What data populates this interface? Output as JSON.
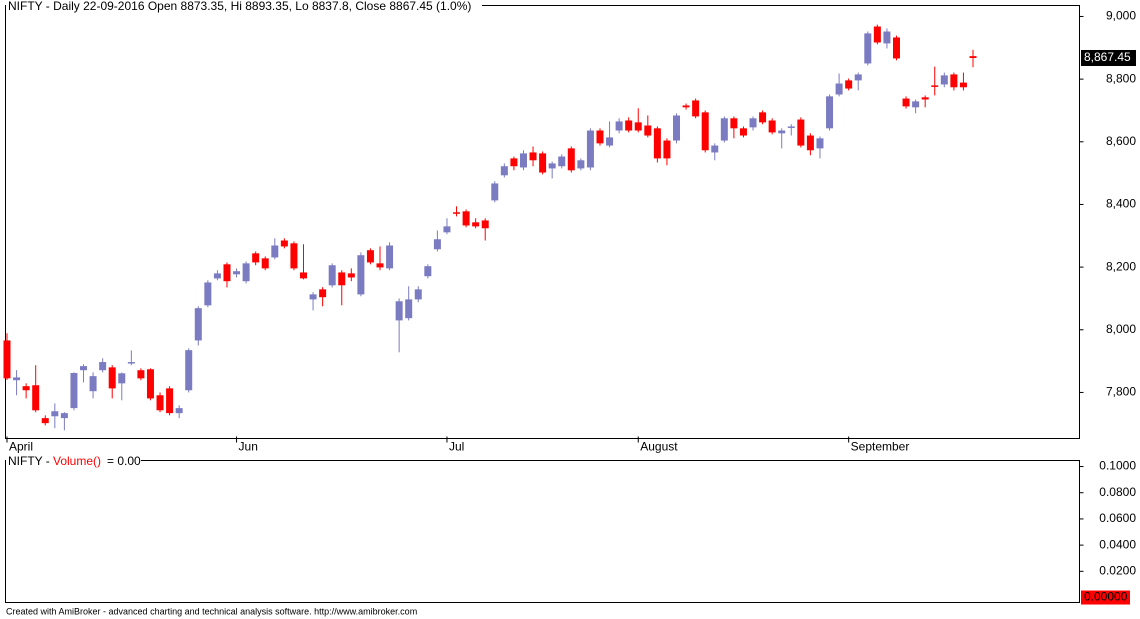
{
  "chart_data": [
    {
      "type": "candlestick",
      "title": "NIFTY - Daily 22-09-2016 Open 8873.35, Hi 8893.35, Lo 8837.8, Close 8867.45 (1.0%)",
      "categories": [
        "April",
        null,
        null,
        null,
        null,
        null,
        null,
        null,
        null,
        null,
        null,
        null,
        null,
        null,
        null,
        null,
        null,
        null,
        null,
        null,
        null,
        null,
        null,
        null,
        "Jun",
        null,
        null,
        null,
        null,
        null,
        null,
        null,
        null,
        null,
        null,
        null,
        null,
        null,
        null,
        null,
        null,
        null,
        null,
        null,
        null,
        null,
        "Jul",
        null,
        null,
        null,
        null,
        null,
        null,
        null,
        null,
        null,
        null,
        null,
        null,
        null,
        null,
        null,
        null,
        null,
        null,
        null,
        "August",
        null,
        null,
        null,
        null,
        null,
        null,
        null,
        null,
        null,
        null,
        null,
        null,
        null,
        null,
        null,
        null,
        null,
        null,
        null,
        null,
        null,
        "September",
        null,
        null,
        null,
        null,
        null,
        null,
        null,
        null,
        null,
        null,
        null,
        null,
        null
      ],
      "open": [
        7966,
        7839,
        7820,
        7823,
        7718,
        7724,
        7718,
        7750,
        7871,
        7804,
        7871,
        7880,
        7829,
        7893,
        7871,
        7874,
        7791,
        7813,
        7734,
        7807,
        7966,
        8078,
        8164,
        8209,
        8177,
        8155,
        8244,
        8228,
        8231,
        8285,
        8276,
        8183,
        8097,
        8129,
        8142,
        8183,
        8180,
        8113,
        8254,
        8212,
        8196,
        8030,
        8037,
        8097,
        8171,
        8257,
        8311,
        8375,
        8378,
        8343,
        8349,
        8413,
        8493,
        8547,
        8518,
        8566,
        8563,
        8515,
        8522,
        8579,
        8515,
        8518,
        8636,
        8588,
        8636,
        8668,
        8662,
        8652,
        8643,
        8604,
        8604,
        8716,
        8732,
        8694,
        8566,
        8604,
        8675,
        8643,
        8646,
        8694,
        8668,
        8627,
        8646,
        8671,
        8620,
        8579,
        8643,
        8751,
        8796,
        8796,
        8850,
        8968,
        8914,
        8933,
        8738,
        8710,
        8742,
        8780,
        8783,
        8815,
        8789,
        8873.35
      ],
      "high": [
        7989,
        7871,
        7829,
        7887,
        7727,
        7765,
        7737,
        7864,
        7890,
        7864,
        7909,
        7887,
        7864,
        7934,
        7877,
        7877,
        7800,
        7820,
        7759,
        7941,
        8075,
        8158,
        8190,
        8215,
        8196,
        8218,
        8250,
        8234,
        8292,
        8292,
        8282,
        8273,
        8120,
        8136,
        8212,
        8190,
        8196,
        8247,
        8260,
        8266,
        8279,
        8100,
        8139,
        8139,
        8209,
        8317,
        8356,
        8394,
        8384,
        8356,
        8356,
        8474,
        8531,
        8553,
        8573,
        8585,
        8569,
        8537,
        8560,
        8585,
        8547,
        8643,
        8643,
        8665,
        8675,
        8678,
        8707,
        8684,
        8649,
        8611,
        8691,
        8722,
        8738,
        8700,
        8595,
        8681,
        8681,
        8649,
        8681,
        8700,
        8675,
        8643,
        8656,
        8678,
        8627,
        8617,
        8751,
        8818,
        8802,
        8821,
        8952,
        8974,
        8962,
        8939,
        8745,
        8735,
        8748,
        8840,
        8821,
        8821,
        8821,
        8893.35
      ],
      "low": [
        7840,
        7791,
        7781,
        7737,
        7695,
        7686,
        7679,
        7743,
        7832,
        7781,
        7864,
        7781,
        7775,
        7887,
        7839,
        7775,
        7737,
        7727,
        7718,
        7800,
        7950,
        8072,
        8158,
        8135,
        8167,
        8148,
        8206,
        8190,
        8225,
        8260,
        8190,
        8161,
        8062,
        8075,
        8135,
        8078,
        8155,
        8107,
        8209,
        8190,
        8190,
        7928,
        8030,
        8088,
        8164,
        8250,
        8305,
        8362,
        8327,
        8324,
        8285,
        8407,
        8486,
        8509,
        8509,
        8522,
        8496,
        8483,
        8515,
        8502,
        8509,
        8509,
        8588,
        8582,
        8627,
        8630,
        8630,
        8614,
        8534,
        8525,
        8595,
        8703,
        8675,
        8566,
        8541,
        8598,
        8611,
        8614,
        8636,
        8656,
        8624,
        8579,
        8620,
        8582,
        8557,
        8547,
        8636,
        8745,
        8764,
        8764,
        8844,
        8911,
        8898,
        8860,
        8706,
        8691,
        8710,
        8748,
        8774,
        8764,
        8764,
        8837.8
      ],
      "close": [
        7845,
        7848,
        7807,
        7743,
        7702,
        7740,
        7734,
        7862,
        7884,
        7852,
        7897,
        7813,
        7861,
        7897,
        7845,
        7781,
        7743,
        7734,
        7750,
        7935,
        8069,
        8151,
        8180,
        8155,
        8187,
        8212,
        8215,
        8196,
        8269,
        8266,
        8196,
        8164,
        8113,
        8104,
        8206,
        8142,
        8167,
        8238,
        8215,
        8199,
        8269,
        8091,
        8097,
        8129,
        8203,
        8289,
        8330,
        8372,
        8333,
        8330,
        8324,
        8467,
        8522,
        8522,
        8563,
        8541,
        8502,
        8531,
        8553,
        8509,
        8541,
        8636,
        8595,
        8614,
        8665,
        8636,
        8636,
        8620,
        8547,
        8547,
        8684,
        8710,
        8681,
        8573,
        8588,
        8675,
        8643,
        8620,
        8675,
        8662,
        8630,
        8636,
        8649,
        8588,
        8573,
        8611,
        8745,
        8786,
        8770,
        8815,
        8946,
        8917,
        8952,
        8866,
        8713,
        8729,
        8735,
        8777,
        8812,
        8774,
        8774,
        8867.45
      ],
      "up_color": "#7b7bc2",
      "down_color": "#ff0000",
      "ylim": [
        7653,
        9035
      ],
      "yticks": [
        {
          "value": 7800,
          "label": "7,800"
        },
        {
          "value": 8000,
          "label": "8,000"
        },
        {
          "value": 8200,
          "label": "8,200"
        },
        {
          "value": 8400,
          "label": "8,400"
        },
        {
          "value": 8600,
          "label": "8,600"
        },
        {
          "value": 8800,
          "label": "8,800"
        },
        {
          "value": 9000,
          "label": "9,000"
        }
      ],
      "last_label": {
        "value": 8867.45,
        "label": "8,867.45"
      }
    },
    {
      "type": "volume",
      "title": "NIFTY -",
      "indicator": "Volume()",
      "readout": "= 0.00",
      "ylim": [
        -0.0038,
        0.1046
      ],
      "yticks": [
        {
          "value": 0.02,
          "label": "0.0200"
        },
        {
          "value": 0.04,
          "label": "0.0400"
        },
        {
          "value": 0.06,
          "label": "0.0600"
        },
        {
          "value": 0.08,
          "label": "0.0800"
        },
        {
          "value": 0.1,
          "label": "0.1000"
        }
      ],
      "last_label": {
        "value": 0,
        "label": "0.00000"
      }
    }
  ],
  "footer": "Created with AmiBroker - advanced charting and technical analysis software. http://www.amibroker.com"
}
